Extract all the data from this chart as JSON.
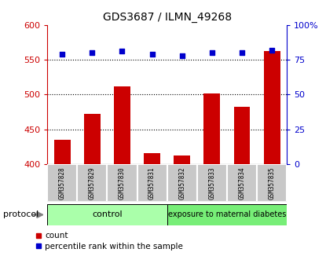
{
  "title": "GDS3687 / ILMN_49268",
  "categories": [
    "GSM357828",
    "GSM357829",
    "GSM357830",
    "GSM357831",
    "GSM357832",
    "GSM357833",
    "GSM357834",
    "GSM357835"
  ],
  "bar_values": [
    435,
    472,
    512,
    416,
    412,
    501,
    482,
    562
  ],
  "scatter_values": [
    79,
    80,
    81,
    79,
    78,
    80,
    80,
    82
  ],
  "bar_color": "#cc0000",
  "scatter_color": "#0000cc",
  "ylim_left": [
    400,
    600
  ],
  "ylim_right": [
    0,
    100
  ],
  "yticks_left": [
    400,
    450,
    500,
    550,
    600
  ],
  "yticks_right": [
    0,
    25,
    50,
    75,
    100
  ],
  "ytick_right_labels": [
    "0",
    "25",
    "50",
    "75",
    "100%"
  ],
  "grid_values": [
    450,
    500,
    550
  ],
  "control_label": "control",
  "diabetes_label": "exposure to maternal diabetes",
  "protocol_label": "protocol",
  "legend_count": "count",
  "legend_percentile": "percentile rank within the sample",
  "control_bg": "#aaffaa",
  "diabetes_bg": "#77ee77",
  "xtick_bg": "#c8c8c8",
  "left_tick_color": "#cc0000",
  "right_tick_color": "#0000cc",
  "n_control": 4,
  "n_total": 8
}
